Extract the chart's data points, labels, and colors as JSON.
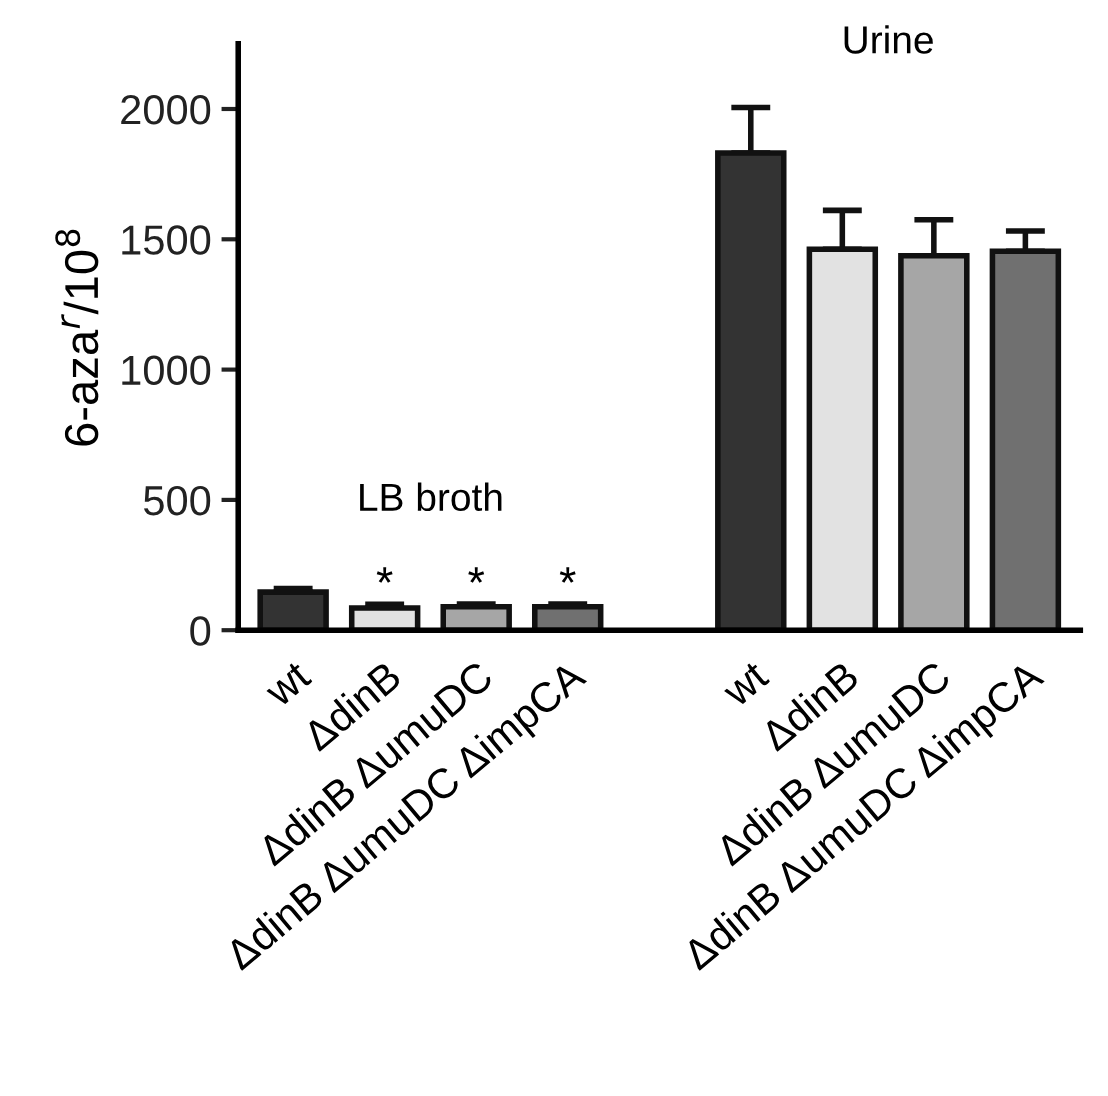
{
  "chart_data": {
    "type": "bar",
    "ylabel": "6-aza$^{r}$/10$^{8}$",
    "categories": [
      "wt",
      "ΔdinB",
      "ΔdinB ΔumuDC",
      "ΔdinB ΔumuDC ΔimpCA",
      null,
      "wt",
      "ΔdinB",
      "ΔdinB ΔumuDC",
      "ΔdinB ΔumuDC ΔimpCA"
    ],
    "values": [
      146,
      85,
      90,
      90,
      null,
      1831,
      1462,
      1437,
      1454
    ],
    "colors": [
      "#333333",
      "#e2e2e2",
      "#a6a6a6",
      "#707070",
      null,
      "#333333",
      "#e2e2e2",
      "#a6a6a6",
      "#707070"
    ],
    "errors": [
      [
        146,
        160
      ],
      [
        85,
        99
      ],
      [
        90,
        100
      ],
      [
        90,
        100
      ],
      null,
      [
        1831,
        2006
      ],
      [
        1462,
        1611
      ],
      [
        1437,
        1575
      ],
      [
        1454,
        1532
      ]
    ],
    "ylim": [
      0,
      2250
    ],
    "yticks": [
      0,
      500,
      1000,
      1500,
      2000
    ],
    "annotations": [
      "LB broth",
      "Urine",
      "*",
      "*",
      "*"
    ]
  }
}
